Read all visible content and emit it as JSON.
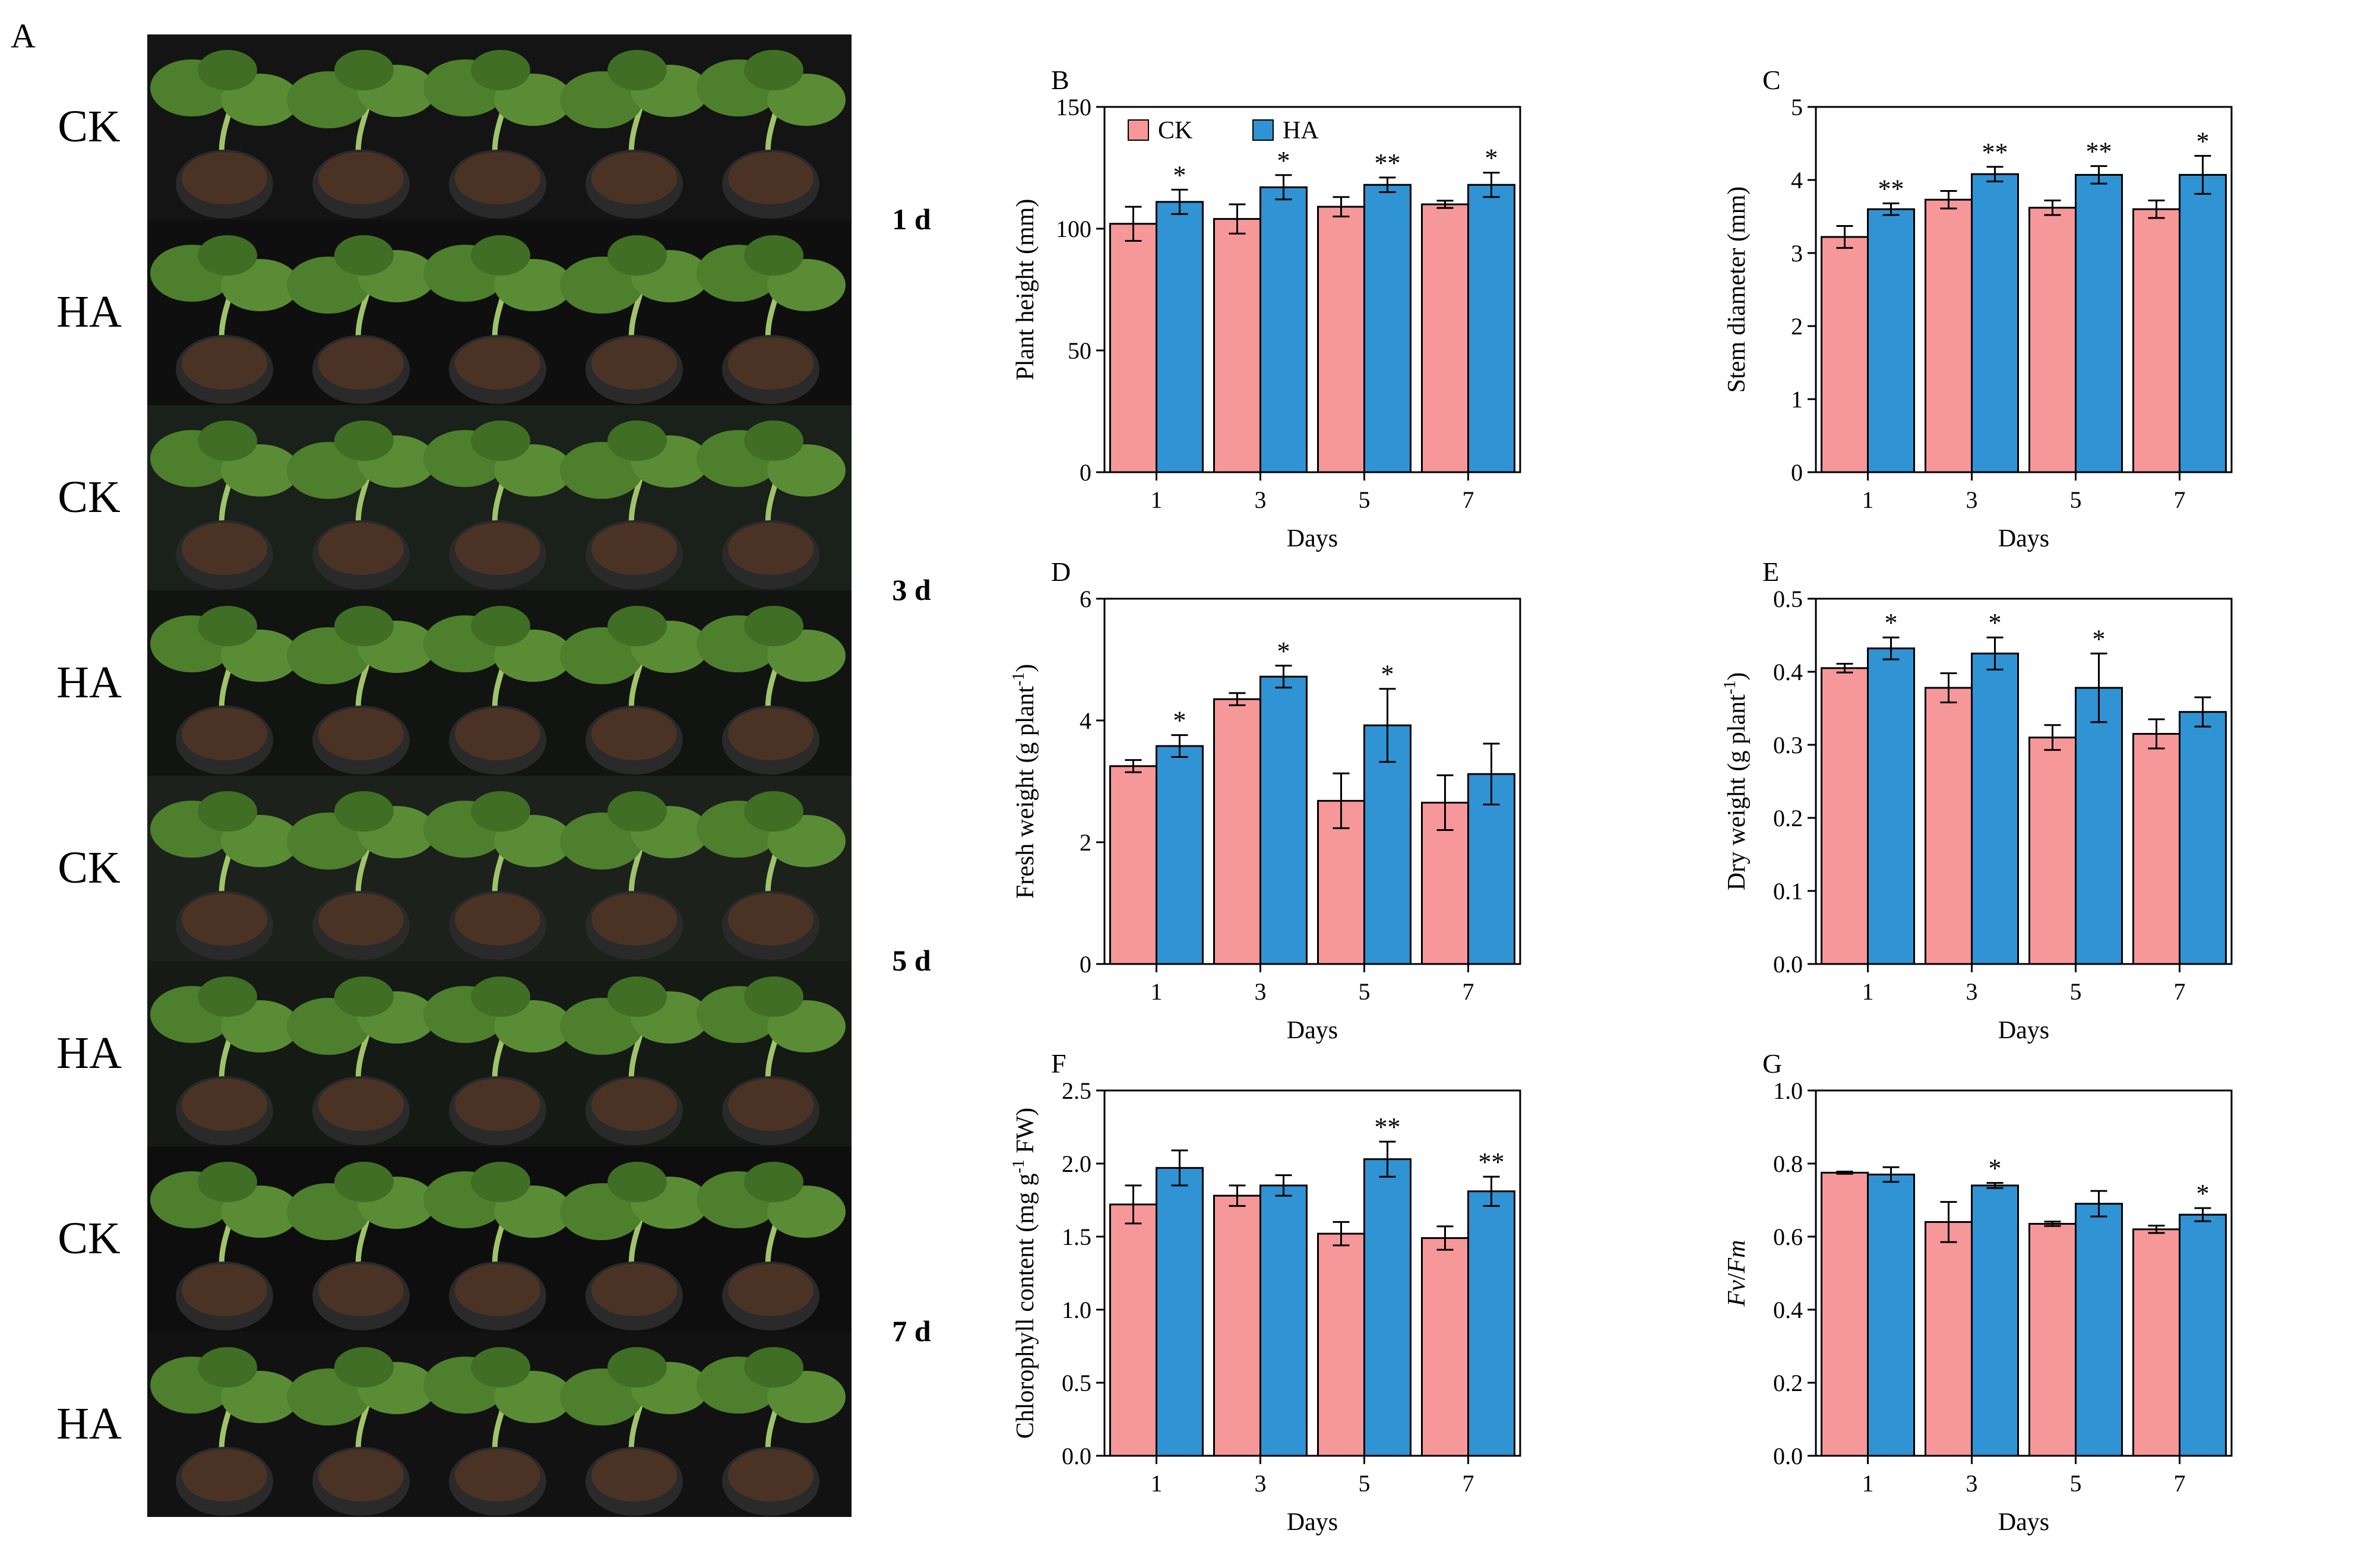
{
  "panel_a": {
    "label": "A",
    "rows": [
      {
        "group_label": "CK"
      },
      {
        "group_label": "HA"
      },
      {
        "group_label": "CK"
      },
      {
        "group_label": "HA"
      },
      {
        "group_label": "CK"
      },
      {
        "group_label": "HA"
      },
      {
        "group_label": "CK"
      },
      {
        "group_label": "HA"
      }
    ],
    "day_labels": [
      "1 d",
      "3 d",
      "5 d",
      "7 d"
    ]
  },
  "colors": {
    "ck": "#f6979a",
    "ha": "#2f93d4"
  },
  "chart_data": [
    {
      "panel": "B",
      "type": "bar",
      "categories": [
        "1",
        "3",
        "5",
        "7"
      ],
      "xlabel": "Days",
      "ylabel": "Plant height (mm)",
      "ylim": [
        0,
        150
      ],
      "yticks": [
        "0",
        "50",
        "100",
        "150"
      ],
      "legend": [
        "CK",
        "HA"
      ],
      "legend_position": "top-left",
      "series": [
        {
          "name": "CK",
          "values": [
            102,
            104,
            109,
            110
          ],
          "errors": [
            7,
            6,
            4,
            1.5
          ]
        },
        {
          "name": "HA",
          "values": [
            111,
            117,
            118,
            118
          ],
          "errors": [
            5,
            5,
            3,
            5
          ]
        }
      ],
      "significance": [
        "*",
        "*",
        "**",
        "*"
      ]
    },
    {
      "panel": "C",
      "type": "bar",
      "categories": [
        "1",
        "3",
        "5",
        "7"
      ],
      "xlabel": "Days",
      "ylabel": "Stem diameter (mm)",
      "ylim": [
        0,
        5
      ],
      "yticks": [
        "0",
        "1",
        "2",
        "3",
        "4",
        "5"
      ],
      "series": [
        {
          "name": "CK",
          "values": [
            3.22,
            3.73,
            3.62,
            3.6
          ],
          "errors": [
            0.15,
            0.12,
            0.1,
            0.12
          ]
        },
        {
          "name": "HA",
          "values": [
            3.6,
            4.08,
            4.07,
            4.07
          ],
          "errors": [
            0.08,
            0.1,
            0.12,
            0.26
          ]
        }
      ],
      "significance": [
        "**",
        "**",
        "**",
        "*"
      ]
    },
    {
      "panel": "D",
      "type": "bar",
      "categories": [
        "1",
        "3",
        "5",
        "7"
      ],
      "xlabel": "Days",
      "ylabel": "Fresh weight (g plant",
      "ylabel_sup": "-1",
      "ylabel_end": ")",
      "ylim": [
        0,
        6
      ],
      "yticks": [
        "0",
        "2",
        "4",
        "6"
      ],
      "series": [
        {
          "name": "CK",
          "values": [
            3.25,
            4.35,
            2.68,
            2.65
          ],
          "errors": [
            0.1,
            0.1,
            0.45,
            0.45
          ]
        },
        {
          "name": "HA",
          "values": [
            3.58,
            4.72,
            3.92,
            3.12
          ],
          "errors": [
            0.18,
            0.18,
            0.6,
            0.5
          ]
        }
      ],
      "significance": [
        "*",
        "*",
        "*",
        ""
      ]
    },
    {
      "panel": "E",
      "type": "bar",
      "categories": [
        "1",
        "3",
        "5",
        "7"
      ],
      "xlabel": "Days",
      "ylabel": "Dry weight (g plant",
      "ylabel_sup": "-1",
      "ylabel_end": ")",
      "ylim": [
        0,
        0.5
      ],
      "yticks": [
        "0.0",
        "0.1",
        "0.2",
        "0.3",
        "0.4",
        "0.5"
      ],
      "series": [
        {
          "name": "CK",
          "values": [
            0.405,
            0.378,
            0.31,
            0.315
          ],
          "errors": [
            0.006,
            0.02,
            0.017,
            0.02
          ]
        },
        {
          "name": "HA",
          "values": [
            0.432,
            0.425,
            0.378,
            0.345
          ],
          "errors": [
            0.015,
            0.022,
            0.047,
            0.02
          ]
        }
      ],
      "significance": [
        "*",
        "*",
        "*",
        ""
      ]
    },
    {
      "panel": "F",
      "type": "bar",
      "categories": [
        "1",
        "3",
        "5",
        "7"
      ],
      "xlabel": "Days",
      "ylabel": "Chlorophyll content (mg g",
      "ylabel_sup": "-1",
      "ylabel_end": " FW)",
      "ylim": [
        0,
        2.5
      ],
      "yticks": [
        "0.0",
        "0.5",
        "1.0",
        "1.5",
        "2.0",
        "2.5"
      ],
      "series": [
        {
          "name": "CK",
          "values": [
            1.72,
            1.78,
            1.52,
            1.49
          ],
          "errors": [
            0.13,
            0.07,
            0.08,
            0.08
          ]
        },
        {
          "name": "HA",
          "values": [
            1.97,
            1.85,
            2.03,
            1.81
          ],
          "errors": [
            0.12,
            0.07,
            0.12,
            0.1
          ]
        }
      ],
      "significance": [
        "",
        "",
        "**",
        "**"
      ]
    },
    {
      "panel": "G",
      "type": "bar",
      "categories": [
        "1",
        "3",
        "5",
        "7"
      ],
      "xlabel": "Days",
      "ylabel": "Fv/Fm",
      "ylim": [
        0,
        1.0
      ],
      "yticks": [
        "0.0",
        "0.2",
        "0.4",
        "0.6",
        "0.8",
        "1.0"
      ],
      "series": [
        {
          "name": "CK",
          "values": [
            0.775,
            0.64,
            0.635,
            0.62
          ],
          "errors": [
            0.003,
            0.055,
            0.006,
            0.01
          ]
        },
        {
          "name": "HA",
          "values": [
            0.77,
            0.74,
            0.69,
            0.66
          ],
          "errors": [
            0.02,
            0.007,
            0.035,
            0.018
          ]
        }
      ],
      "significance": [
        "",
        "*",
        "",
        "*"
      ]
    }
  ]
}
